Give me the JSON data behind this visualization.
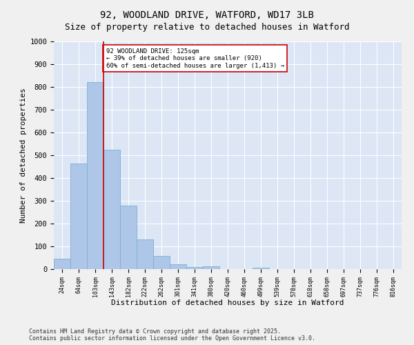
{
  "title": "92, WOODLAND DRIVE, WATFORD, WD17 3LB",
  "subtitle": "Size of property relative to detached houses in Watford",
  "xlabel": "Distribution of detached houses by size in Watford",
  "ylabel": "Number of detached properties",
  "categories": [
    "24sqm",
    "64sqm",
    "103sqm",
    "143sqm",
    "182sqm",
    "222sqm",
    "262sqm",
    "301sqm",
    "341sqm",
    "380sqm",
    "420sqm",
    "460sqm",
    "499sqm",
    "539sqm",
    "578sqm",
    "618sqm",
    "658sqm",
    "697sqm",
    "737sqm",
    "776sqm",
    "816sqm"
  ],
  "values": [
    45,
    465,
    820,
    525,
    280,
    130,
    58,
    22,
    10,
    12,
    0,
    0,
    5,
    0,
    0,
    0,
    0,
    0,
    0,
    0,
    0
  ],
  "bar_color": "#aec6e8",
  "bar_edge_color": "#7bafd4",
  "vline_x": 2.5,
  "vline_color": "#cc0000",
  "annotation_text": "92 WOODLAND DRIVE: 125sqm\n← 39% of detached houses are smaller (920)\n60% of semi-detached houses are larger (1,413) →",
  "annotation_box_color": "#ffffff",
  "annotation_box_edge_color": "#cc0000",
  "ylim": [
    0,
    1000
  ],
  "yticks": [
    0,
    100,
    200,
    300,
    400,
    500,
    600,
    700,
    800,
    900,
    1000
  ],
  "background_color": "#dce6f5",
  "grid_color": "#ffffff",
  "fig_bg_color": "#f0f0f0",
  "footer_text": "Contains HM Land Registry data © Crown copyright and database right 2025.\nContains public sector information licensed under the Open Government Licence v3.0.",
  "title_fontsize": 10,
  "subtitle_fontsize": 9,
  "annotation_fontsize": 6.5,
  "footer_fontsize": 6,
  "ylabel_fontsize": 8,
  "xlabel_fontsize": 8,
  "ytick_fontsize": 7.5,
  "xtick_fontsize": 6
}
